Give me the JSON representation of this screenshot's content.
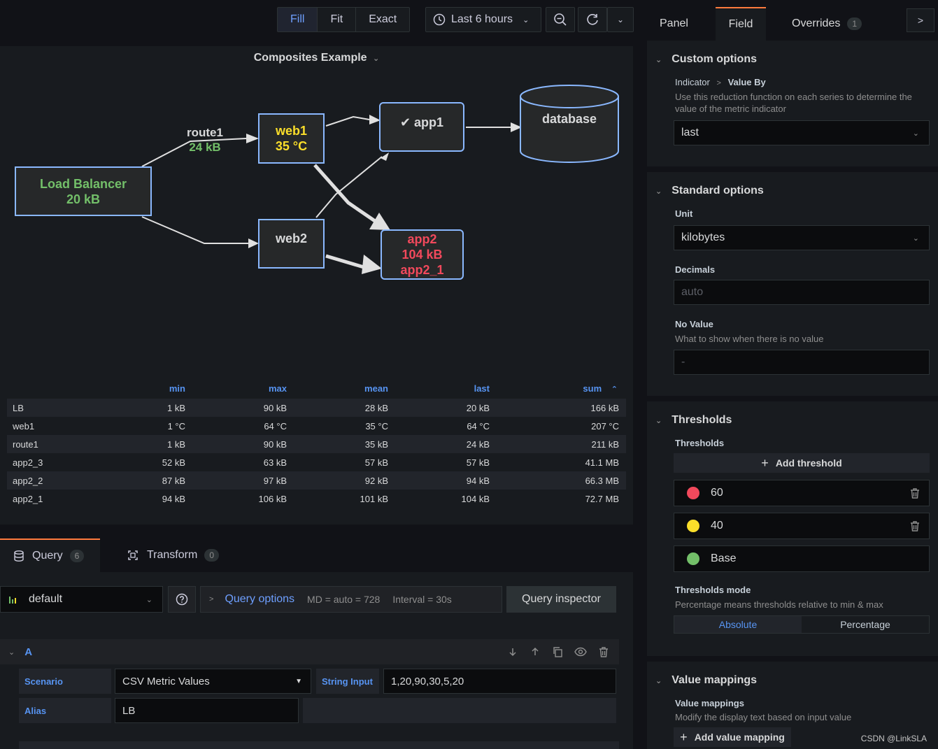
{
  "toolbar": {
    "fill": "Fill",
    "fit": "Fit",
    "exact": "Exact",
    "time_range": "Last 6 hours"
  },
  "panel": {
    "title": "Composites Example",
    "nodes": {
      "lb": {
        "name": "Load Balancer",
        "value": "20 kB"
      },
      "web1": {
        "name": "web1",
        "value": "35 °C"
      },
      "web2": {
        "name": "web2"
      },
      "app1": {
        "name": "app1"
      },
      "app2": {
        "name": "app2",
        "value": "104 kB",
        "sub": "app2_1"
      },
      "database": {
        "name": "database"
      }
    },
    "edge": {
      "name": "route1",
      "value": "24 kB"
    }
  },
  "stats": {
    "headers": [
      "min",
      "max",
      "mean",
      "last",
      "sum"
    ],
    "rows": [
      [
        "LB",
        "1 kB",
        "90 kB",
        "28 kB",
        "20 kB",
        "166 kB"
      ],
      [
        "web1",
        "1 °C",
        "64 °C",
        "35 °C",
        "64 °C",
        "207 °C"
      ],
      [
        "route1",
        "1 kB",
        "90 kB",
        "35 kB",
        "24 kB",
        "211 kB"
      ],
      [
        "app2_3",
        "52 kB",
        "63 kB",
        "57 kB",
        "57 kB",
        "41.1 MB"
      ],
      [
        "app2_2",
        "87 kB",
        "97 kB",
        "92 kB",
        "94 kB",
        "66.3 MB"
      ],
      [
        "app2_1",
        "94 kB",
        "106 kB",
        "101 kB",
        "104 kB",
        "72.7 MB"
      ]
    ]
  },
  "query": {
    "tab_query": "Query",
    "query_count": "6",
    "tab_transform": "Transform",
    "transform_count": "0",
    "datasource": "default",
    "options_label": "Query options",
    "options_md": "MD = auto = 728",
    "options_interval": "Interval = 30s",
    "inspector": "Query inspector",
    "row_id": "A",
    "scenario_label": "Scenario",
    "scenario_value": "CSV Metric Values",
    "string_input_label": "String Input",
    "string_input_value": "1,20,90,30,5,20",
    "alias_label": "Alias",
    "alias_value": "LB"
  },
  "side": {
    "tab_panel": "Panel",
    "tab_field": "Field",
    "tab_overrides": "Overrides",
    "overrides_count": "1",
    "custom_title": "Custom options",
    "crumb_1": "Indicator",
    "crumb_2": "Value By",
    "custom_desc": "Use this reduction function on each series to determine the value of the metric indicator",
    "custom_value": "last",
    "standard_title": "Standard options",
    "unit_label": "Unit",
    "unit_value": "kilobytes",
    "decimals_label": "Decimals",
    "decimals_placeholder": "auto",
    "novalue_label": "No Value",
    "novalue_desc": "What to show when there is no value",
    "novalue_placeholder": "-",
    "thresholds_title": "Thresholds",
    "thresholds_label": "Thresholds",
    "add_threshold": "Add threshold",
    "thresholds": [
      {
        "value": "60",
        "color": "#f2495c"
      },
      {
        "value": "40",
        "color": "#fade2a"
      },
      {
        "value": "Base",
        "color": "#73bf69"
      }
    ],
    "mode_label": "Thresholds mode",
    "mode_desc": "Percentage means thresholds relative to min & max",
    "mode_absolute": "Absolute",
    "mode_percentage": "Percentage",
    "mappings_title": "Value mappings",
    "mappings_label": "Value mappings",
    "mappings_desc": "Modify the display text based on input value",
    "add_mapping": "Add value mapping"
  },
  "watermark": "CSDN @LinkSLA"
}
